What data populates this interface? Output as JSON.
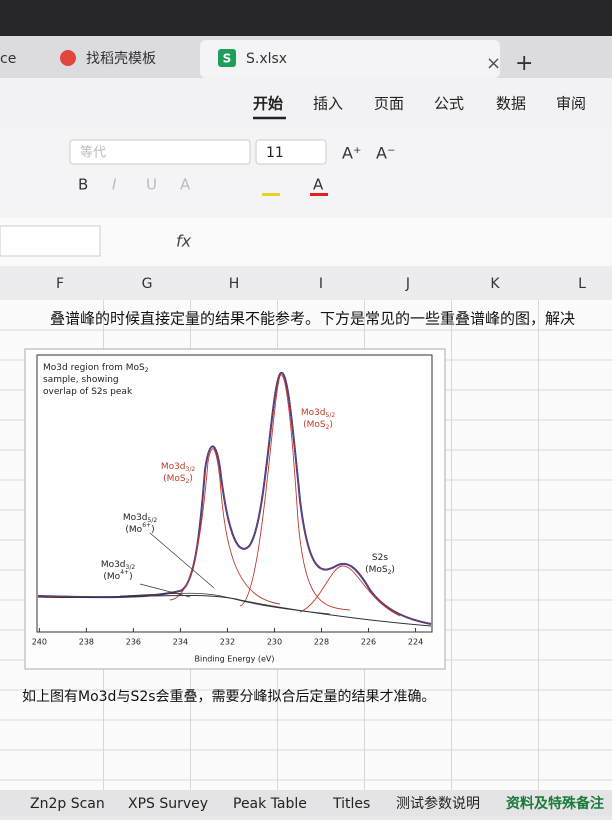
{
  "browser_tabs": [
    "ce",
    "找稻壳模板",
    "S.xlsx"
  ],
  "file_icon": "S",
  "menu": [
    "开始",
    "插入",
    "页面",
    "公式",
    "数据",
    "审阅"
  ],
  "toolbar": {
    "font": "等代",
    "size": "11",
    "grow": "A⁺",
    "shrink": "A⁻",
    "styles": [
      "B",
      "I",
      "U",
      "A"
    ],
    "font_color": "A"
  },
  "formula_bar": {
    "fx": "fx"
  },
  "columns": [
    "F",
    "G",
    "H",
    "I",
    "J",
    "K",
    "L"
  ],
  "cells": {
    "text": "叠谱峰的时候直接定量的结果不能参考。下方是常见的一些重叠谱峰的图，解决",
    "caption": "如上图有Mo3d与S2s会重叠，需要分峰拟合后定量的结果才准确。"
  },
  "figure": {
    "xlim": [
      240.1,
      223.3
    ],
    "xticks": [
      240,
      238,
      236,
      234,
      232,
      230,
      228,
      226,
      224
    ],
    "x_label": "Binding Energy (eV)",
    "annotations": [
      {
        "lines": [
          [
            "Mo3d region from MoS",
            {
              "sub": "2"
            }
          ],
          [
            "sample, showing"
          ],
          [
            "overlap of S2s peak"
          ]
        ],
        "color": "#222222"
      },
      {
        "lines": [
          [
            "Mo3d",
            {
              "sub": "5/2"
            }
          ],
          [
            "(MoS",
            {
              "sub": "2"
            },
            ")"
          ]
        ],
        "color": "#c0392b"
      },
      {
        "lines": [
          [
            "Mo3d",
            {
              "sub": "3/2"
            }
          ],
          [
            "(MoS",
            {
              "sub": "2"
            },
            ")"
          ]
        ],
        "color": "#c0392b"
      },
      {
        "lines": [
          [
            "Mo3d",
            {
              "sub": "5/2"
            }
          ],
          [
            "(Mo",
            {
              "sup": "6+"
            },
            ")"
          ]
        ],
        "color": "#222222"
      },
      {
        "lines": [
          [
            "Mo3d",
            {
              "sub": "3/2"
            }
          ],
          [
            "(Mo",
            {
              "sup": "4+"
            },
            ")"
          ]
        ],
        "color": "#222222"
      },
      {
        "lines": [
          [
            "S2s"
          ],
          [
            "(MoS",
            {
              "sub": "2"
            },
            ")"
          ]
        ],
        "color": "#222222"
      }
    ]
  },
  "sheet_tabs": [
    "Zn2p Scan",
    "XPS Survey",
    "Peak Table",
    "Titles",
    "测试参数说明",
    "资料及特殊备注"
  ]
}
